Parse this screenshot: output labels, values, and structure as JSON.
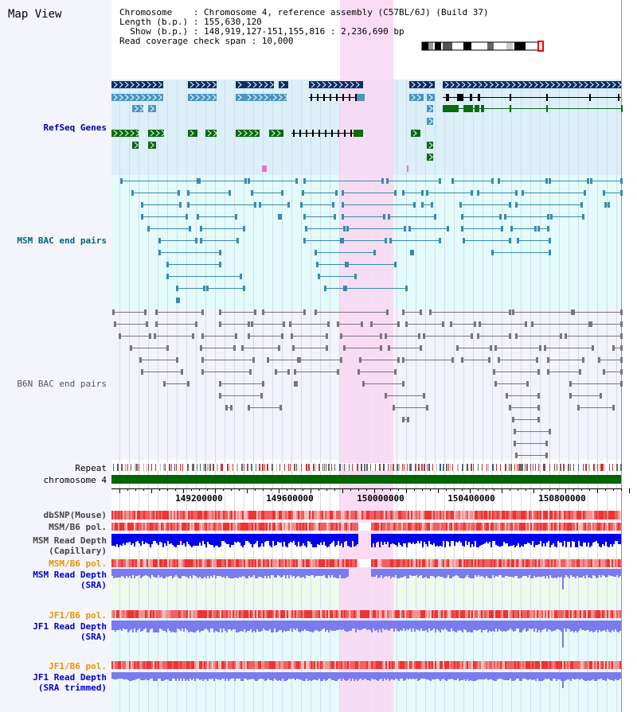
{
  "window": {
    "title": "Map View"
  },
  "info": {
    "line1": "Chromosome    : Chromosome 4, reference assembly (C57BL/6J) (Build 37)",
    "line2": "Length (b.p.) : 155,630,120",
    "line3": "  Show (b.p.) : 148,919,127-151,155,816 : 2,236,690 bp",
    "line4": "Read coverage check span : 10,000"
  },
  "tracks": {
    "refseq": "RefSeq Genes",
    "msm_bac": "MSM BAC end pairs",
    "b6n_bac": "B6N BAC end pairs",
    "repeat": "Repeat",
    "chromosome": "chromosome 4",
    "dbsnp": "dbSNP(Mouse)",
    "msm_b6_pol": "MSM/B6 pol.",
    "msm_depth_cap_1": "MSM Read Depth",
    "msm_depth_cap_2": "(Capillary)",
    "msm_b6_pol2": "MSM/B6 pol.",
    "msm_depth_sra_1": "MSM Read Depth",
    "msm_depth_sra_2": "(SRA)",
    "jf1_b6_pol": "JF1/B6 pol.",
    "jf1_depth_sra_1": "JF1 Read Depth",
    "jf1_depth_sra_2": "(SRA)",
    "jf1_b6_pol2": "JF1/B6 pol.",
    "jf1_depth_trim_1": "JF1 Read Depth",
    "jf1_depth_trim_2": "(SRA trimmed)"
  },
  "axis": {
    "ticks": [
      "149200000",
      "149600000",
      "150000000",
      "150400000",
      "150800000"
    ]
  },
  "colors": {
    "highlight": "#f9d7f2",
    "refseq_bg": "#dcf0fa",
    "msm_bg": "#e4fbfb",
    "b6n_bg": "#f3f3fb",
    "gene_navy": "#0b2e63",
    "gene_blue": "#4a96c0",
    "gene_green": "#0a6a10",
    "chrom": "#006600",
    "depth_dark": "#0000ee",
    "depth_light": "#7b7bf0"
  }
}
